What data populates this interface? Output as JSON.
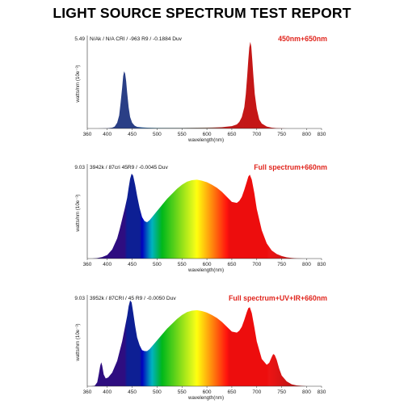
{
  "report_title": "LIGHT SOURCE SPECTRUM TEST REPORT",
  "chart_data": [
    {
      "type": "area",
      "label": "450nm+650nm",
      "measurement": "N/Ak / N/A CRI / -963 R9 / -0.1884 Duv",
      "ylabel": "watts/nm (10e⁻³)",
      "xlabel": "wavelength(nm)",
      "ymax_label": "5.49",
      "ylim": [
        0,
        5.49
      ],
      "xlim": [
        360,
        830
      ],
      "xticks": [
        "360",
        "450",
        "550",
        "650",
        "750",
        "830",
        "400",
        "500",
        "600",
        "700",
        "800"
      ],
      "fill": "bands",
      "x": [
        380,
        400,
        410,
        415,
        420,
        424,
        427,
        430,
        432,
        434,
        436,
        438,
        440,
        443,
        446,
        450,
        455,
        460,
        470,
        480,
        500,
        520,
        550,
        580,
        610,
        630,
        650,
        660,
        665,
        670,
        675,
        678,
        681,
        683,
        685,
        687,
        689,
        691,
        693,
        696,
        700,
        705,
        710,
        720,
        730,
        740,
        760
      ],
      "y": [
        0,
        0.01,
        0.05,
        0.12,
        0.35,
        0.8,
        1.6,
        2.5,
        3.2,
        3.5,
        3.35,
        2.9,
        2.2,
        1.3,
        0.7,
        0.35,
        0.17,
        0.1,
        0.07,
        0.05,
        0.04,
        0.04,
        0.04,
        0.05,
        0.06,
        0.08,
        0.14,
        0.25,
        0.4,
        0.7,
        1.3,
        2.1,
        3.3,
        4.2,
        4.95,
        5.3,
        5.0,
        4.2,
        3.3,
        2.1,
        1.2,
        0.55,
        0.3,
        0.12,
        0.05,
        0.02,
        0
      ]
    },
    {
      "type": "area",
      "label": "Full spectrum+660nm",
      "measurement": "3942k / 87cri 45R9 / -0.0045 Duv",
      "ylabel": "watts/nm (10e⁻³)",
      "xlabel": "wavelength(nm)",
      "ymax_label": "9.03",
      "ylim": [
        0,
        9.03
      ],
      "xlim": [
        360,
        830
      ],
      "xticks": [
        "360",
        "450",
        "550",
        "650",
        "750",
        "830",
        "400",
        "500",
        "600",
        "700",
        "800"
      ],
      "fill": "rainbow",
      "x": [
        370,
        380,
        390,
        400,
        410,
        420,
        425,
        430,
        435,
        440,
        443,
        446,
        449,
        452,
        456,
        460,
        465,
        470,
        475,
        480,
        485,
        490,
        500,
        510,
        520,
        530,
        540,
        550,
        560,
        570,
        580,
        590,
        600,
        610,
        620,
        630,
        640,
        650,
        660,
        665,
        670,
        675,
        680,
        683,
        686,
        690,
        695,
        700,
        710,
        720,
        730,
        740,
        750,
        760,
        770,
        780,
        795
      ],
      "y": [
        0,
        0.05,
        0.15,
        0.35,
        0.9,
        2.0,
        2.9,
        3.9,
        4.9,
        6.0,
        7.0,
        7.9,
        8.4,
        8.2,
        7.3,
        6.2,
        5.0,
        4.1,
        3.7,
        3.6,
        3.8,
        4.1,
        4.7,
        5.3,
        5.9,
        6.4,
        6.9,
        7.3,
        7.6,
        7.75,
        7.8,
        7.7,
        7.55,
        7.3,
        7.0,
        6.6,
        6.1,
        5.6,
        5.5,
        5.7,
        6.1,
        6.8,
        7.6,
        8.1,
        8.3,
        7.8,
        6.5,
        4.9,
        2.8,
        1.5,
        0.8,
        0.45,
        0.25,
        0.12,
        0.06,
        0.02,
        0
      ]
    },
    {
      "type": "area",
      "label": "Full spectrum+UV+IR+660nm",
      "measurement": "3952k / 87CRI / 45 R9 / -0.0050 Duv",
      "ylabel": "watts/nm (10e⁻³)",
      "xlabel": "wavelength(nm)",
      "ymax_label": "9.03",
      "ylim": [
        0,
        9.03
      ],
      "xlim": [
        360,
        830
      ],
      "xticks": [
        "360",
        "450",
        "550",
        "650",
        "750",
        "830",
        "400",
        "500",
        "600",
        "700",
        "800"
      ],
      "fill": "rainbow",
      "x": [
        368,
        375,
        380,
        383,
        386,
        388,
        390,
        393,
        397,
        402,
        410,
        420,
        430,
        435,
        440,
        443,
        446,
        449,
        452,
        456,
        460,
        465,
        470,
        475,
        480,
        485,
        490,
        500,
        510,
        520,
        530,
        540,
        550,
        560,
        570,
        580,
        590,
        600,
        610,
        620,
        630,
        640,
        650,
        660,
        665,
        670,
        675,
        680,
        683,
        686,
        690,
        695,
        700,
        710,
        720,
        725,
        730,
        733,
        736,
        740,
        745,
        750,
        760,
        770,
        780,
        800
      ],
      "y": [
        0,
        0.05,
        0.4,
        1.2,
        2.1,
        2.45,
        2.1,
        1.2,
        0.8,
        0.9,
        1.4,
        2.6,
        4.6,
        5.9,
        7.2,
        8.2,
        8.8,
        8.6,
        7.6,
        6.2,
        5.0,
        4.2,
        3.7,
        3.6,
        3.6,
        3.8,
        4.1,
        4.7,
        5.3,
        5.9,
        6.4,
        6.9,
        7.3,
        7.6,
        7.75,
        7.8,
        7.7,
        7.55,
        7.3,
        7.0,
        6.6,
        6.1,
        5.6,
        5.5,
        5.7,
        6.1,
        6.8,
        7.6,
        8.0,
        8.1,
        7.5,
        6.1,
        4.6,
        2.8,
        2.2,
        2.4,
        3.0,
        3.3,
        3.2,
        2.7,
        1.8,
        1.1,
        0.5,
        0.2,
        0.08,
        0
      ]
    }
  ]
}
